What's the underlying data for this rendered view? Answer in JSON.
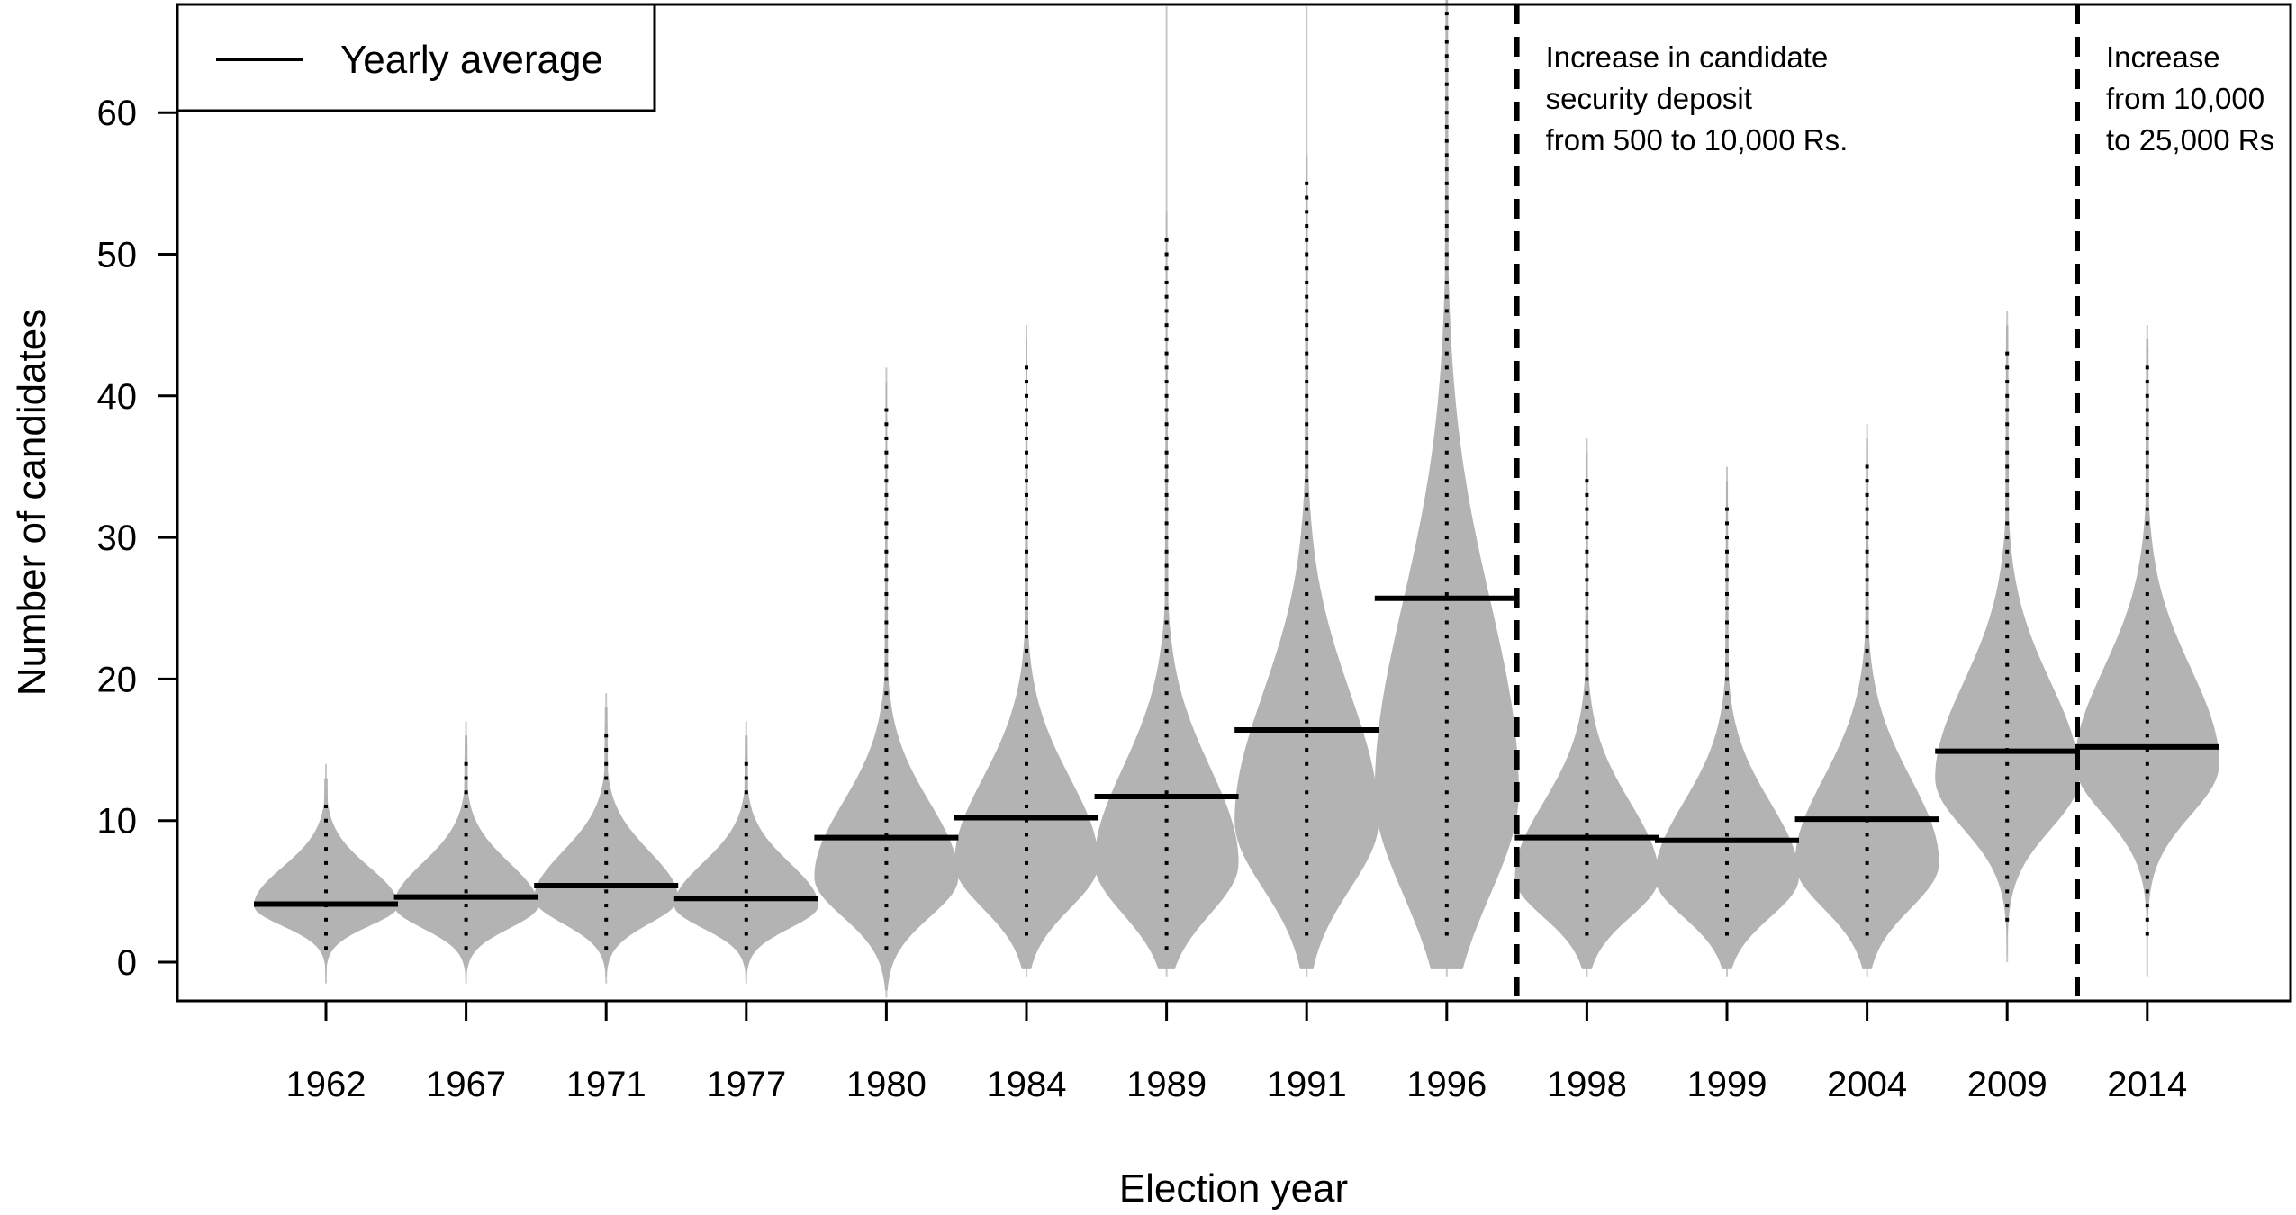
{
  "chart_data": {
    "type": "violin",
    "xlabel": "Election year",
    "ylabel": "Number of candidates",
    "ylim": [
      -2.8,
      67.5
    ],
    "yticks": [
      0,
      10,
      20,
      30,
      40,
      50,
      60
    ],
    "grid": false,
    "legend": {
      "position": "top-left",
      "entries": [
        {
          "label": "Yearly average",
          "symbol": "line"
        }
      ]
    },
    "series": [
      {
        "name": "Yearly average",
        "categories": [
          "1962",
          "1967",
          "1971",
          "1977",
          "1980",
          "1984",
          "1989",
          "1991",
          "1996",
          "1998",
          "1999",
          "2004",
          "2009",
          "2014"
        ],
        "values": [
          4.1,
          4.6,
          5.4,
          4.5,
          8.8,
          10.2,
          11.7,
          16.4,
          25.7,
          8.8,
          8.6,
          10.1,
          14.9,
          15.2
        ]
      }
    ],
    "distributions": [
      {
        "year": "1962",
        "min": 1,
        "max": 11,
        "mode": 4,
        "spread": 1.8,
        "whisker": [
          -1.5,
          14
        ]
      },
      {
        "year": "1967",
        "min": 1,
        "max": 14,
        "mode": 4,
        "spread": 2.0,
        "whisker": [
          -1.5,
          17
        ]
      },
      {
        "year": "1971",
        "min": 1,
        "max": 16,
        "mode": 4.5,
        "spread": 2.2,
        "whisker": [
          -1.5,
          19
        ]
      },
      {
        "year": "1977",
        "min": 1,
        "max": 14,
        "mode": 4,
        "spread": 2.0,
        "whisker": [
          -1.5,
          17
        ]
      },
      {
        "year": "1980",
        "min": 1,
        "max": 39,
        "mode": 6,
        "spread": 3.5,
        "whisker": [
          -2.5,
          42
        ]
      },
      {
        "year": "1984",
        "min": 2,
        "max": 42,
        "mode": 7,
        "spread": 4.0,
        "whisker": [
          -1,
          45
        ]
      },
      {
        "year": "1989",
        "min": 1,
        "max": 51,
        "mode": 7,
        "spread": 4.5,
        "whisker": [
          -1,
          67.5
        ]
      },
      {
        "year": "1991",
        "min": 2,
        "max": 55,
        "mode": 10,
        "spread": 6.0,
        "whisker": [
          -1,
          67.5
        ]
      },
      {
        "year": "1996",
        "min": 2,
        "max": 67,
        "mode": 12,
        "spread": 9.0,
        "whisker": [
          -1,
          67.5
        ]
      },
      {
        "year": "1998",
        "min": 2,
        "max": 34,
        "mode": 6,
        "spread": 3.5,
        "whisker": [
          -1,
          37
        ]
      },
      {
        "year": "1999",
        "min": 2,
        "max": 32,
        "mode": 6,
        "spread": 3.5,
        "whisker": [
          -1,
          35
        ]
      },
      {
        "year": "2004",
        "min": 2,
        "max": 35,
        "mode": 7,
        "spread": 4.0,
        "whisker": [
          -1,
          38
        ]
      },
      {
        "year": "2009",
        "min": 3,
        "max": 43,
        "mode": 13,
        "spread": 4.5,
        "whisker": [
          0,
          46
        ]
      },
      {
        "year": "2014",
        "min": 2,
        "max": 42,
        "mode": 14,
        "spread": 4.5,
        "whisker": [
          -1,
          45
        ]
      }
    ],
    "reference_lines": [
      {
        "between": [
          "1996",
          "1998"
        ],
        "style": "dashed",
        "label_lines": [
          "Increase in candidate",
          "security deposit",
          "from 500 to 10,000 Rs."
        ]
      },
      {
        "between": [
          "2009",
          "2014"
        ],
        "style": "dashed",
        "label_lines": [
          "Increase",
          "from 10,000",
          "to 25,000 Rs"
        ]
      }
    ],
    "colors": {
      "violin": "#b3b3b3",
      "whisker": "#c8c8c8",
      "dots": "#000000",
      "average": "#000000"
    }
  }
}
